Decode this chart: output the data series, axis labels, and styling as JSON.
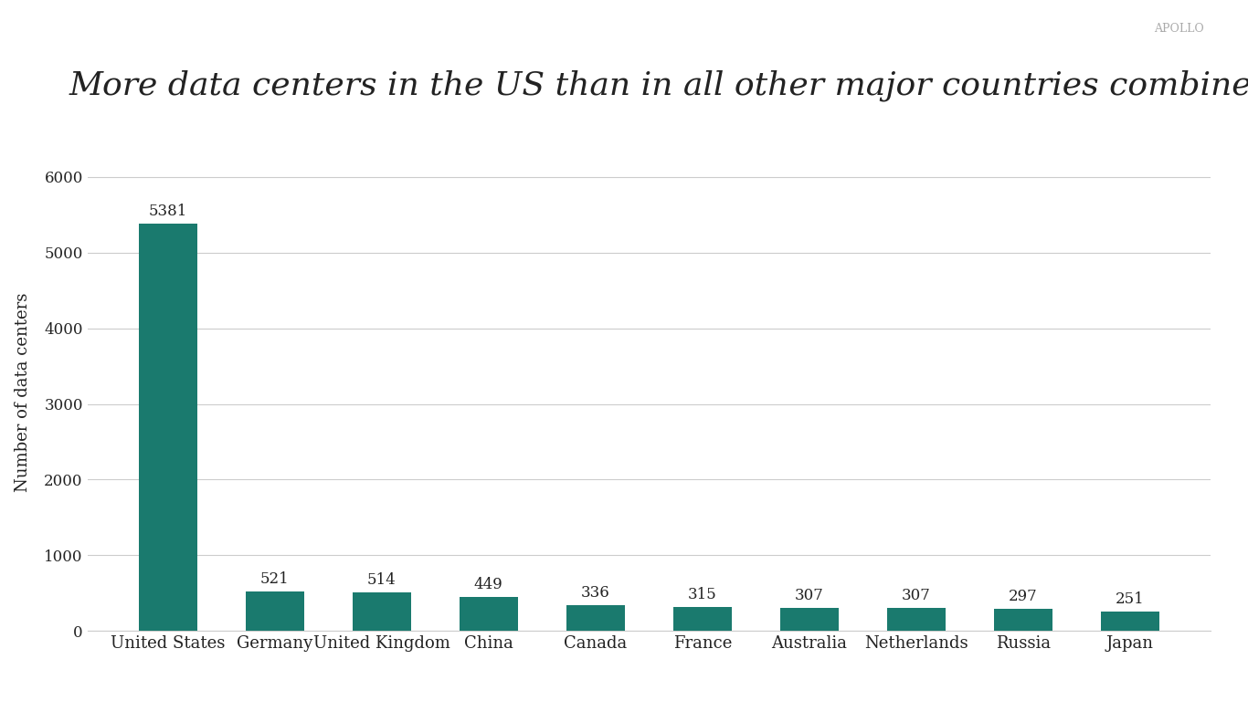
{
  "title": "More data centers in the US than in all other major countries combined",
  "watermark": "APOLLO",
  "ylabel": "Number of data centers",
  "categories": [
    "United States",
    "Germany",
    "United Kingdom",
    "China",
    "Canada",
    "France",
    "Australia",
    "Netherlands",
    "Russia",
    "Japan"
  ],
  "values": [
    5381,
    521,
    514,
    449,
    336,
    315,
    307,
    307,
    297,
    251
  ],
  "bar_color": "#1a7a6e",
  "background_color": "#ffffff",
  "title_fontsize": 26,
  "label_fontsize": 13,
  "tick_fontsize": 12,
  "yticks": [
    0,
    1000,
    2000,
    3000,
    4000,
    5000,
    6000
  ],
  "ylim": [
    0,
    6300
  ],
  "bar_width": 0.55,
  "grid_color": "#cccccc",
  "text_color": "#222222",
  "watermark_color": "#aaaaaa",
  "value_label_fontsize": 12
}
